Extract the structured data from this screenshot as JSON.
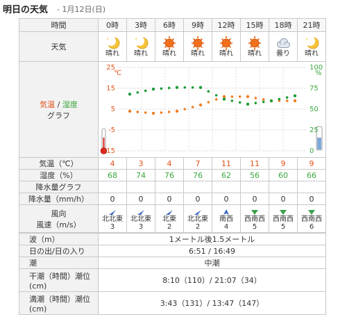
{
  "header": {
    "title": "明日の天気",
    "date": " - 1月12日(日)"
  },
  "table": {
    "time_label": "時間",
    "times": [
      "0時",
      "3時",
      "6時",
      "9時",
      "12時",
      "15時",
      "18時",
      "21時"
    ],
    "weather_label": "天気",
    "weather": [
      {
        "icon": "moon-icon",
        "label": "晴れ"
      },
      {
        "icon": "moon-icon",
        "label": "晴れ"
      },
      {
        "icon": "sun-icon",
        "label": "晴れ"
      },
      {
        "icon": "sun-icon",
        "label": "晴れ"
      },
      {
        "icon": "sun-icon",
        "label": "晴れ"
      },
      {
        "icon": "sun-icon",
        "label": "晴れ"
      },
      {
        "icon": "cloud-icon",
        "label": "曇り"
      },
      {
        "icon": "moon-icon",
        "label": "晴れ"
      }
    ],
    "graph_label_temp": "気温",
    "graph_label_sep": " / ",
    "graph_label_hum": "湿度",
    "graph_label_graph": "グラフ",
    "temp_label": "気温（℃）",
    "temps": [
      "4",
      "3",
      "4",
      "7",
      "11",
      "11",
      "9",
      "9"
    ],
    "humidity_label": "湿度（%）",
    "humidity": [
      "68",
      "74",
      "76",
      "76",
      "62",
      "56",
      "60",
      "66"
    ],
    "precip_graph_label": "降水量グラフ",
    "precip_label": "降水量（mm/h）",
    "precip": [
      "0",
      "0",
      "0",
      "0",
      "0",
      "0",
      "0",
      "0"
    ],
    "wind_label_1": "風向",
    "wind_label_2": "風速（m/s）",
    "wind": [
      {
        "dir": "北北東",
        "speed": "3",
        "icon": "wind-arrow-blue-icon"
      },
      {
        "dir": "北北東",
        "speed": "3",
        "icon": "wind-arrow-blue-icon"
      },
      {
        "dir": "北東",
        "speed": "2",
        "icon": "wind-arrow-blue-icon"
      },
      {
        "dir": "北北東",
        "speed": "2",
        "icon": "wind-arrow-blue-icon"
      },
      {
        "dir": "南西",
        "speed": "4",
        "icon": "wind-arrow-blue-icon"
      },
      {
        "dir": "西南西",
        "speed": "5",
        "icon": "wind-arrow-green-icon"
      },
      {
        "dir": "西南西",
        "speed": "5",
        "icon": "wind-arrow-green-icon"
      },
      {
        "dir": "西南西",
        "speed": "6",
        "icon": "wind-arrow-green-icon"
      }
    ]
  },
  "sea": {
    "wave_label": "波（m）",
    "wave": "1メートル後1.5メートル",
    "sun_label": "日の出/日の入り",
    "sun": "6:51 / 16:49",
    "tide_label": "潮",
    "tide": "中潮",
    "low_label_1": "干潮（時間）潮位",
    "low_label_2": "(cm)",
    "low": "8:10（110）/ 21:07（34）",
    "high_label_1": "満潮（時間）潮位",
    "high_label_2": "(cm)",
    "high": "3:43（131）/ 13:47（147）"
  },
  "chart_data": {
    "type": "line",
    "x": [
      "0時",
      "3時",
      "6時",
      "9時",
      "12時",
      "15時",
      "18時",
      "21時"
    ],
    "series": [
      {
        "name": "気温",
        "values": [
          4,
          3,
          4,
          7,
          11,
          11,
          9,
          9
        ],
        "axis": "left",
        "color": "#f07d22"
      },
      {
        "name": "湿度",
        "values": [
          68,
          74,
          76,
          76,
          62,
          56,
          60,
          66
        ],
        "axis": "right",
        "color": "#1f9c38"
      }
    ],
    "left_axis": {
      "unit": "℃",
      "ticks": [
        "25",
        "15",
        "5",
        "-5",
        "-15"
      ],
      "range": [
        -15,
        25
      ]
    },
    "right_axis": {
      "unit": "%",
      "ticks": [
        "100",
        "75",
        "50",
        "25",
        "0"
      ],
      "range": [
        0,
        100
      ]
    }
  },
  "colors": {
    "temp": "#e1531b",
    "humidity": "#39a63d",
    "border": "#c8c8c8",
    "label_bg": "#f2f2f2"
  }
}
